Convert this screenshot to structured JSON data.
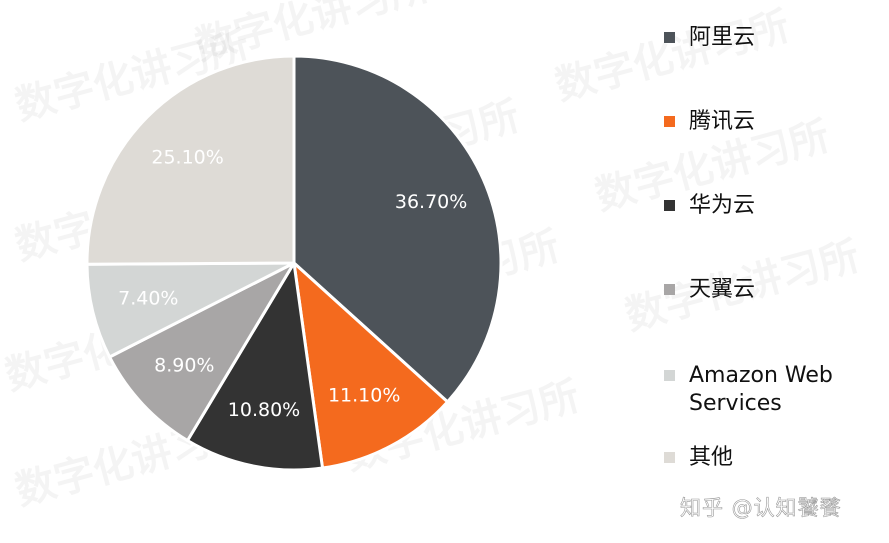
{
  "chart_data": {
    "type": "pie",
    "title": "",
    "slices": [
      {
        "label": "阿里云",
        "value": 36.7,
        "display": "36.70%",
        "color": "#4d5359"
      },
      {
        "label": "腾讯云",
        "value": 11.1,
        "display": "11.10%",
        "color": "#f46a1e"
      },
      {
        "label": "华为云",
        "value": 10.8,
        "display": "10.80%",
        "color": "#333333"
      },
      {
        "label": "天翼云",
        "value": 8.9,
        "display": "8.90%",
        "color": "#a8a6a6"
      },
      {
        "label": "Amazon Web Services",
        "value": 7.4,
        "display": "7.40%",
        "color": "#d3d6d5"
      },
      {
        "label": "其他",
        "value": 25.1,
        "display": "25.10%",
        "color": "#dedbd6"
      }
    ],
    "legend_position": "right",
    "start_angle": "12 o'clock",
    "direction": "clockwise"
  },
  "legend": {
    "items": [
      {
        "label": "阿里云",
        "color": "#4d5359"
      },
      {
        "label": "腾讯云",
        "color": "#f46a1e"
      },
      {
        "label": "华为云",
        "color": "#333333"
      },
      {
        "label": "天翼云",
        "color": "#a8a6a6"
      },
      {
        "label": "Amazon Web Services",
        "color": "#d3d6d5"
      },
      {
        "label": "其他",
        "color": "#dedbd6"
      }
    ]
  },
  "watermark": {
    "text": "数字化讲习所"
  },
  "credit": {
    "text": "知乎 @认知饕餮"
  }
}
